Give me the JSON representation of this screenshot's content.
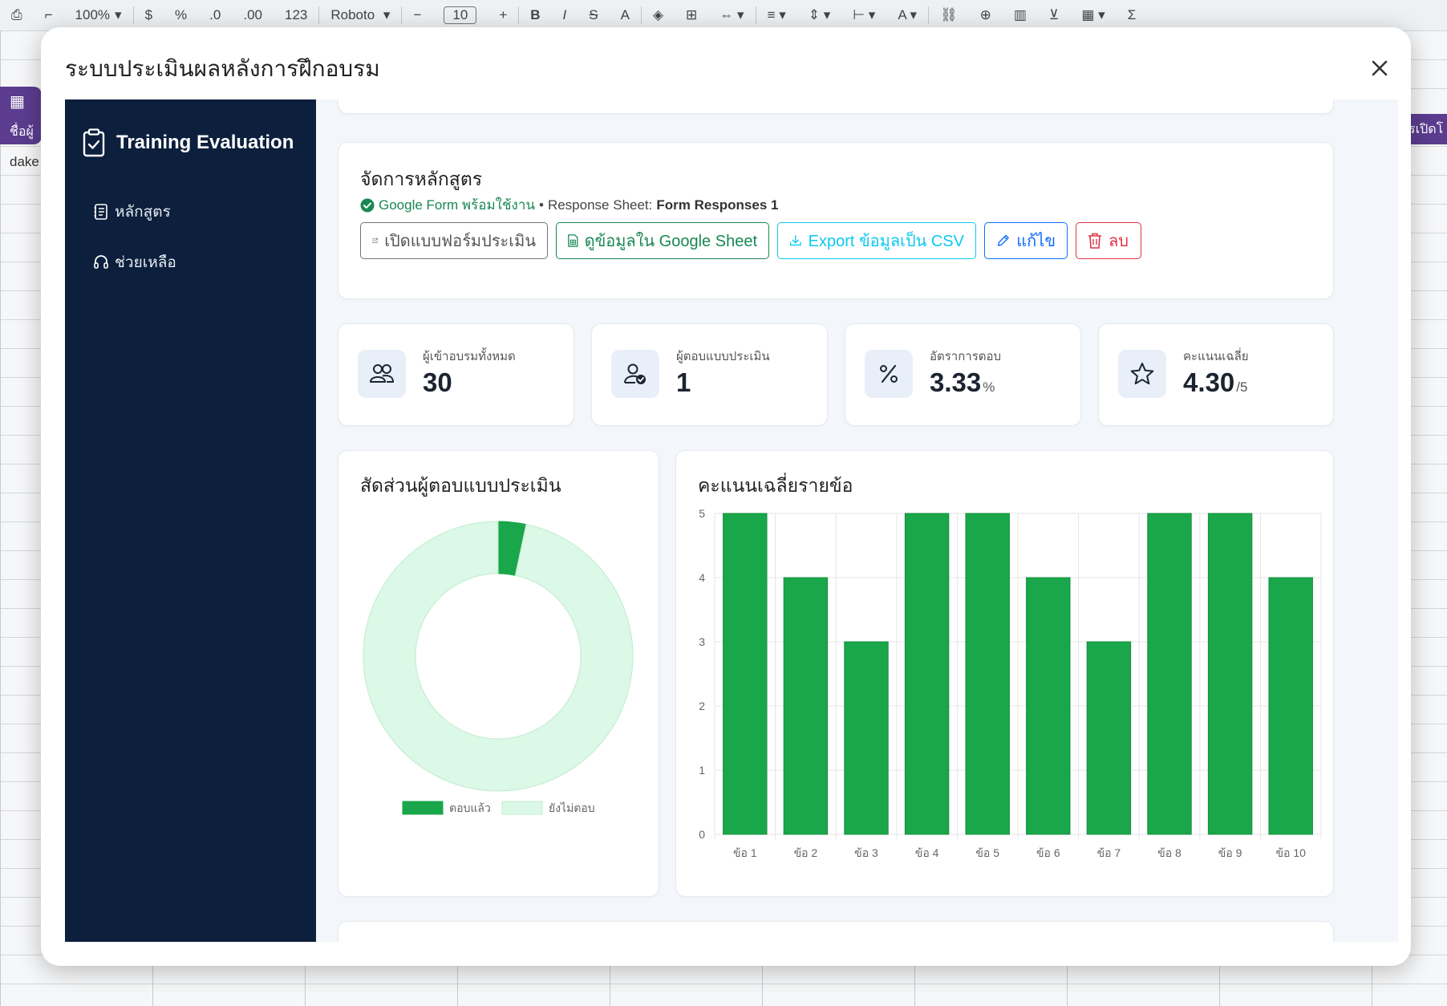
{
  "background": {
    "zoom": "100%",
    "currency": "$",
    "percent": "%",
    "format_123": "123",
    "font": "Roboto",
    "font_size": "10",
    "cell_tab_left": "ชื่อผู้",
    "cell_tab_right": "รเปิดโ",
    "cell_text": "dake"
  },
  "modal": {
    "title": "ระบบประเมินผลหลังการฝึกอบรม"
  },
  "sidebar": {
    "brand": "Training Evaluation",
    "items": [
      {
        "label": "หลักสูตร"
      },
      {
        "label": "ช่วยเหลือ"
      }
    ]
  },
  "management": {
    "title": "จัดการหลักสูตร",
    "form_status": "Google Form พร้อมใช้งาน",
    "bullet": "•",
    "response_sheet_label": "Response Sheet:",
    "response_sheet_name": "Form Responses 1",
    "buttons": {
      "open_form": "เปิดแบบฟอร์มประเมิน",
      "view_sheet": "ดูข้อมูลใน Google Sheet",
      "export_csv": "Export ข้อมูลเป็น CSV",
      "edit": "แก้ไข",
      "delete": "ลบ"
    }
  },
  "stats": [
    {
      "label": "ผู้เข้าอบรมทั้งหมด",
      "value": "30",
      "unit": "",
      "icon": "users-icon"
    },
    {
      "label": "ผู้ตอบแบบประเมิน",
      "value": "1",
      "unit": "",
      "icon": "user-check-icon"
    },
    {
      "label": "อัตราการตอบ",
      "value": "3.33",
      "unit": "%",
      "icon": "percent-icon"
    },
    {
      "label": "คะแนนเฉลี่ย",
      "value": "4.30",
      "unit": "/5",
      "icon": "star-icon"
    }
  ],
  "colors": {
    "sidebar": "#0c1f3c",
    "bar": "#1aa64a",
    "donut_answered": "#1aa64a",
    "donut_unanswered": "#dcf8e6",
    "success": "#198754",
    "info": "#0dcaf0",
    "primary": "#0d6efd",
    "danger": "#dc3545"
  },
  "chart_data": [
    {
      "type": "pie",
      "variant": "doughnut",
      "title": "สัดส่วนผู้ตอบแบบประเมิน",
      "categories": [
        "ตอบแล้ว",
        "ยังไม่ตอบ"
      ],
      "values": [
        1,
        29
      ],
      "legend": "bottom"
    },
    {
      "type": "bar",
      "title": "คะแนนเฉลี่ยรายข้อ",
      "categories": [
        "ข้อ 1",
        "ข้อ 2",
        "ข้อ 3",
        "ข้อ 4",
        "ข้อ 5",
        "ข้อ 6",
        "ข้อ 7",
        "ข้อ 8",
        "ข้อ 9",
        "ข้อ 10"
      ],
      "values": [
        5,
        4,
        3,
        5,
        5,
        4,
        3,
        5,
        5,
        4
      ],
      "ylim": [
        0,
        5
      ],
      "yticks": [
        "0",
        "1",
        "2",
        "3",
        "4",
        "5"
      ],
      "grid": true
    }
  ]
}
